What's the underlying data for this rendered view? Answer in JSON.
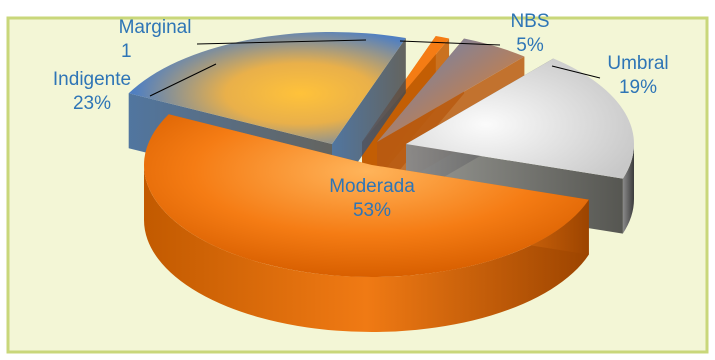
{
  "chart_data": {
    "type": "pie",
    "categories": [
      "Moderada",
      "Indigente",
      "Marginal",
      "NBS",
      "Umbral"
    ],
    "values": [
      53,
      23,
      1,
      5,
      19
    ],
    "value_labels": [
      "53%",
      "23%",
      "1",
      "5%",
      "19%"
    ],
    "three_d": true,
    "exploded": true,
    "legend": "none",
    "colors": {
      "Moderada": "#f57c14",
      "Indigente": "#5b84b8",
      "Marginal": "#f57c14",
      "NBS": "#f08a2a",
      "Umbral": "#d6d6d6",
      "background": "#f3f6d6",
      "border": "#c9d77a",
      "label_text": "#2e75b6"
    }
  }
}
